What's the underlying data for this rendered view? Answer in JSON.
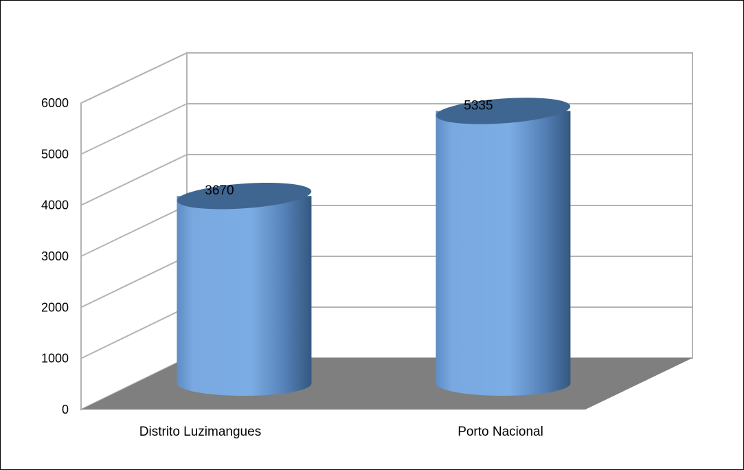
{
  "chart_data": {
    "type": "bar",
    "style": "3d-cylinder",
    "categories": [
      "Distrito Luzimangues",
      "Porto Nacional"
    ],
    "values": [
      3670,
      5335
    ],
    "data_labels": [
      "3670",
      "5335"
    ],
    "yticks": [
      "0",
      "1000",
      "2000",
      "3000",
      "4000",
      "5000",
      "6000"
    ],
    "ylim": [
      0,
      6000
    ],
    "grid": true,
    "legend": "none",
    "colors": {
      "bar": "#79a9e0",
      "bar_dark": "#3a6190",
      "bar_top": "#3f6690",
      "floor": "#7f7f7f",
      "grid": "#b3b3b3"
    }
  }
}
